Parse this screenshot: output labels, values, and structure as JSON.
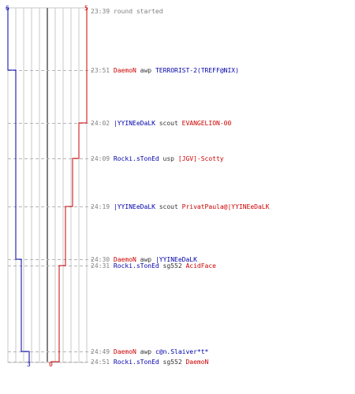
{
  "colors": {
    "ct": "#0000aa",
    "terrorist": "#cc0000",
    "grid": "#c8c8c8",
    "dash": "#b4b4b4",
    "center_line": "#808080",
    "time_text": "#808080"
  },
  "counts": {
    "ct_start": "6",
    "t_start": "5",
    "ct_end": "3",
    "t_end": "0"
  },
  "events": [
    {
      "time": "23:39",
      "message": "round started",
      "killer": "",
      "killer_team": "",
      "weapon": "",
      "victim": "",
      "victim_team": "",
      "ct_alive": 6,
      "t_alive": 5
    },
    {
      "time": "23:51",
      "message": "",
      "killer": "DaemoN",
      "killer_team": "t",
      "weapon": "awp",
      "victim": "TERRORIST-2(TREFF@NIX)",
      "victim_team": "ct",
      "ct_alive": 5,
      "t_alive": 5
    },
    {
      "time": "24:02",
      "message": "",
      "killer": "|YYINEeDaLK",
      "killer_team": "ct",
      "weapon": "scout",
      "victim": "EVANGELION-00",
      "victim_team": "t",
      "ct_alive": 5,
      "t_alive": 4
    },
    {
      "time": "24:09",
      "message": "",
      "killer": "Rocki.sTonEd",
      "killer_team": "ct",
      "weapon": "usp",
      "victim": "[JGV]-Scotty",
      "victim_team": "t",
      "ct_alive": 5,
      "t_alive": 3
    },
    {
      "time": "24:19",
      "message": "",
      "killer": "|YYINEeDaLK",
      "killer_team": "ct",
      "weapon": "scout",
      "victim": "PrivatPaula@|YYINEeDaLK",
      "victim_team": "t",
      "ct_alive": 5,
      "t_alive": 2
    },
    {
      "time": "24:30",
      "message": "",
      "killer": "DaemoN",
      "killer_team": "t",
      "weapon": "awp",
      "victim": "|YYINEeDaLK",
      "victim_team": "ct",
      "ct_alive": 4,
      "t_alive": 2
    },
    {
      "time": "24:31",
      "message": "",
      "killer": "Rocki.sTonEd",
      "killer_team": "ct",
      "weapon": "sg552",
      "victim": "AcidFace",
      "victim_team": "t",
      "ct_alive": 4,
      "t_alive": 1
    },
    {
      "time": "24:49",
      "message": "",
      "killer": "DaemoN",
      "killer_team": "t",
      "weapon": "awp",
      "victim": "c@n.Slaiver*t*",
      "victim_team": "ct",
      "ct_alive": 3,
      "t_alive": 1
    },
    {
      "time": "24:51",
      "message": "",
      "killer": "Rocki.sTonEd",
      "killer_team": "ct",
      "weapon": "sg552",
      "victim": "DaemoN",
      "victim_team": "t",
      "ct_alive": 3,
      "t_alive": 0
    }
  ]
}
